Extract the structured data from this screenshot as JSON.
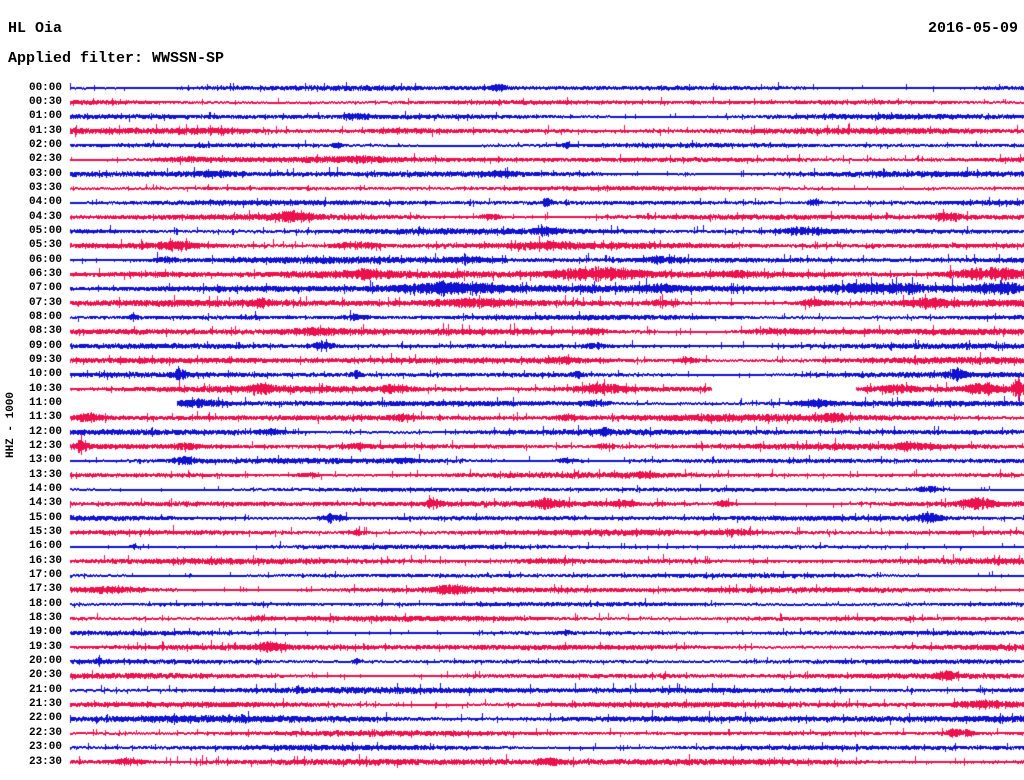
{
  "header": {
    "station": "HL Oia",
    "date": "2016-05-09",
    "filter_label": "Applied filter: WWSSN-SP"
  },
  "axis": {
    "channel_scale_label": "HHZ - 1000"
  },
  "colors": {
    "trace_blue": "#1111d2",
    "trace_red": "#ee0f4d",
    "text": "#000000",
    "background": "#ffffff"
  },
  "chart_data": {
    "type": "helicorder-seismogram",
    "title": "HL Oia",
    "date": "2016-05-09",
    "filter": "WWSSN-SP",
    "ylabel": "HHZ - 1000",
    "minutes_per_row": 30,
    "n_rows": 48,
    "row_color_cycle": [
      "blue",
      "red"
    ],
    "rows": [
      {
        "t": "00:00",
        "c": "blue",
        "b": 1.8,
        "ev": [
          [
            0.45,
            0.006,
            3
          ]
        ]
      },
      {
        "t": "00:30",
        "c": "red",
        "b": 1.6,
        "ev": []
      },
      {
        "t": "01:00",
        "c": "blue",
        "b": 1.8,
        "ev": [
          [
            0.3,
            0.008,
            2.5
          ]
        ]
      },
      {
        "t": "01:30",
        "c": "red",
        "b": 2.0,
        "ev": [
          [
            0.15,
            0.03,
            2
          ],
          [
            0.35,
            0.02,
            2
          ]
        ]
      },
      {
        "t": "02:00",
        "c": "blue",
        "b": 1.5,
        "ev": [
          [
            0.28,
            0.004,
            2.5
          ],
          [
            0.52,
            0.004,
            2.5
          ]
        ]
      },
      {
        "t": "02:30",
        "c": "red",
        "b": 2.0,
        "ev": [
          [
            0.12,
            0.02,
            2
          ],
          [
            0.3,
            0.02,
            2
          ]
        ]
      },
      {
        "t": "03:00",
        "c": "blue",
        "b": 2.0,
        "ev": [
          [
            0.15,
            0.02,
            2
          ],
          [
            0.45,
            0.015,
            2
          ]
        ]
      },
      {
        "t": "03:30",
        "c": "red",
        "b": 1.5,
        "ev": []
      },
      {
        "t": "04:00",
        "c": "blue",
        "b": 1.8,
        "ev": [
          [
            0.5,
            0.004,
            4.5
          ],
          [
            0.78,
            0.004,
            4.5
          ]
        ]
      },
      {
        "t": "04:30",
        "c": "red",
        "b": 2.0,
        "ev": [
          [
            0.235,
            0.012,
            5.5
          ],
          [
            0.44,
            0.008,
            3
          ],
          [
            0.92,
            0.012,
            3.5
          ]
        ]
      },
      {
        "t": "05:00",
        "c": "blue",
        "b": 2.0,
        "ev": [
          [
            0.5,
            0.01,
            2.5
          ],
          [
            0.77,
            0.02,
            3.5
          ]
        ]
      },
      {
        "t": "05:30",
        "c": "red",
        "b": 2.2,
        "ev": [
          [
            0.11,
            0.02,
            3
          ],
          [
            0.3,
            0.02,
            3.5
          ],
          [
            0.5,
            0.015,
            2.5
          ]
        ]
      },
      {
        "t": "06:00",
        "c": "blue",
        "b": 2.2,
        "ev": [
          [
            0.1,
            0.008,
            2.5
          ],
          [
            0.42,
            0.015,
            2.5
          ],
          [
            0.62,
            0.015,
            3
          ]
        ]
      },
      {
        "t": "06:30",
        "c": "red",
        "b": 2.6,
        "ev": [
          [
            0.08,
            0.04,
            2
          ],
          [
            0.31,
            0.015,
            3.5
          ],
          [
            0.555,
            0.035,
            6.5
          ],
          [
            0.7,
            0.01,
            3
          ],
          [
            0.965,
            0.03,
            6.5
          ]
        ]
      },
      {
        "t": "07:00",
        "c": "blue",
        "b": 2.6,
        "ev": [
          [
            0.4,
            0.04,
            5.5
          ],
          [
            0.62,
            0.01,
            3
          ],
          [
            0.845,
            0.05,
            5.5
          ],
          [
            0.975,
            0.02,
            5
          ]
        ]
      },
      {
        "t": "07:30",
        "c": "red",
        "b": 2.4,
        "ev": [
          [
            0.2,
            0.008,
            3
          ],
          [
            0.42,
            0.03,
            3.5
          ],
          [
            0.62,
            0.008,
            3
          ],
          [
            0.78,
            0.012,
            3
          ],
          [
            0.9,
            0.012,
            3.5
          ]
        ]
      },
      {
        "t": "08:00",
        "c": "blue",
        "b": 1.8,
        "ev": [
          [
            0.066,
            0.003,
            5
          ],
          [
            0.3,
            0.008,
            2.5
          ]
        ]
      },
      {
        "t": "08:30",
        "c": "red",
        "b": 2.2,
        "ev": [
          [
            0.26,
            0.025,
            3
          ],
          [
            0.55,
            0.008,
            3
          ],
          [
            0.74,
            0.025,
            3
          ]
        ]
      },
      {
        "t": "09:00",
        "c": "blue",
        "b": 1.8,
        "ev": [
          [
            0.265,
            0.008,
            4.5
          ],
          [
            0.55,
            0.008,
            2.5
          ]
        ]
      },
      {
        "t": "09:30",
        "c": "red",
        "b": 2.2,
        "ev": [
          [
            0.52,
            0.012,
            2.5
          ],
          [
            0.65,
            0.008,
            2.5
          ]
        ]
      },
      {
        "t": "10:00",
        "c": "blue",
        "b": 1.8,
        "ev": [
          [
            0.115,
            0.005,
            4.5
          ],
          [
            0.3,
            0.004,
            3.5
          ],
          [
            0.53,
            0.004,
            3
          ],
          [
            0.93,
            0.005,
            5
          ]
        ]
      },
      {
        "t": "10:30",
        "c": "red",
        "b": 2.2,
        "gaps": [
          [
            0.672,
            0.823
          ]
        ],
        "ev": [
          [
            0.2,
            0.01,
            4
          ],
          [
            0.34,
            0.01,
            4
          ],
          [
            0.555,
            0.02,
            5
          ],
          [
            0.865,
            0.015,
            4
          ],
          [
            0.955,
            0.012,
            5
          ],
          [
            0.993,
            0.004,
            10
          ]
        ]
      },
      {
        "t": "11:00",
        "c": "blue",
        "b": 2.0,
        "start": 0.112,
        "ev": [
          [
            0.135,
            0.015,
            3.5
          ],
          [
            0.55,
            0.01,
            3
          ],
          [
            0.78,
            0.015,
            3
          ]
        ]
      },
      {
        "t": "11:30",
        "c": "red",
        "b": 2.4,
        "ev": [
          [
            0.02,
            0.008,
            3
          ],
          [
            0.35,
            0.008,
            3
          ],
          [
            0.52,
            0.008,
            3
          ],
          [
            0.8,
            0.008,
            3.5
          ]
        ]
      },
      {
        "t": "12:00",
        "c": "blue",
        "b": 2.0,
        "ev": [
          [
            0.21,
            0.01,
            2.5
          ],
          [
            0.56,
            0.004,
            3.5
          ]
        ]
      },
      {
        "t": "12:30",
        "c": "red",
        "b": 2.0,
        "ev": [
          [
            0.012,
            0.004,
            6
          ],
          [
            0.12,
            0.008,
            3
          ],
          [
            0.3,
            0.008,
            3
          ],
          [
            0.56,
            0.008,
            3
          ],
          [
            0.88,
            0.01,
            3
          ]
        ]
      },
      {
        "t": "13:00",
        "c": "blue",
        "b": 1.8,
        "ev": [
          [
            0.12,
            0.008,
            4.5
          ],
          [
            0.35,
            0.008,
            2.5
          ],
          [
            0.52,
            0.008,
            2.5
          ]
        ]
      },
      {
        "t": "13:30",
        "c": "red",
        "b": 1.8,
        "ev": [
          [
            0.25,
            0.01,
            2
          ],
          [
            0.6,
            0.01,
            2
          ]
        ]
      },
      {
        "t": "14:00",
        "c": "blue",
        "b": 1.5,
        "ev": [
          [
            0.9,
            0.01,
            3.5
          ]
        ]
      },
      {
        "t": "14:30",
        "c": "red",
        "b": 2.0,
        "ev": [
          [
            0.38,
            0.006,
            4
          ],
          [
            0.5,
            0.012,
            4
          ],
          [
            0.58,
            0.006,
            3.5
          ],
          [
            0.685,
            0.006,
            3.5
          ],
          [
            0.95,
            0.012,
            5.5
          ]
        ]
      },
      {
        "t": "15:00",
        "c": "blue",
        "b": 1.8,
        "ev": [
          [
            0.275,
            0.008,
            4.5
          ],
          [
            0.9,
            0.008,
            5
          ]
        ]
      },
      {
        "t": "15:30",
        "c": "red",
        "b": 2.0,
        "ev": [
          [
            0.3,
            0.01,
            2
          ],
          [
            0.7,
            0.01,
            2
          ]
        ]
      },
      {
        "t": "16:00",
        "c": "blue",
        "b": 1.5,
        "ev": [
          [
            0.066,
            0.003,
            3
          ]
        ]
      },
      {
        "t": "16:30",
        "c": "red",
        "b": 2.0,
        "ev": [
          [
            0.5,
            0.02,
            1.5
          ]
        ]
      },
      {
        "t": "17:00",
        "c": "blue",
        "b": 1.5,
        "ev": []
      },
      {
        "t": "17:30",
        "c": "red",
        "b": 2.0,
        "ev": [
          [
            0.05,
            0.02,
            2.5
          ],
          [
            0.4,
            0.015,
            4
          ]
        ]
      },
      {
        "t": "18:00",
        "c": "blue",
        "b": 1.5,
        "ev": []
      },
      {
        "t": "18:30",
        "c": "red",
        "b": 1.8,
        "ev": [
          [
            0.2,
            0.01,
            1.5
          ]
        ]
      },
      {
        "t": "19:00",
        "c": "blue",
        "b": 1.5,
        "ev": [
          [
            0.52,
            0.003,
            3
          ]
        ]
      },
      {
        "t": "19:30",
        "c": "red",
        "b": 2.0,
        "ev": [
          [
            0.21,
            0.01,
            4.5
          ]
        ]
      },
      {
        "t": "20:00",
        "c": "blue",
        "b": 1.5,
        "ev": [
          [
            0.03,
            0.003,
            3
          ],
          [
            0.3,
            0.003,
            3
          ]
        ]
      },
      {
        "t": "20:30",
        "c": "red",
        "b": 1.8,
        "ev": [
          [
            0.92,
            0.008,
            3.5
          ]
        ]
      },
      {
        "t": "21:00",
        "c": "blue",
        "b": 2.2,
        "ev": []
      },
      {
        "t": "21:30",
        "c": "red",
        "b": 2.0,
        "ev": [
          [
            0.96,
            0.02,
            3.5
          ]
        ]
      },
      {
        "t": "22:00",
        "c": "blue",
        "b": 2.4,
        "ev": []
      },
      {
        "t": "22:30",
        "c": "red",
        "b": 1.8,
        "ev": [
          [
            0.93,
            0.01,
            4.5
          ]
        ]
      },
      {
        "t": "23:00",
        "c": "blue",
        "b": 1.8,
        "ev": []
      },
      {
        "t": "23:30",
        "c": "red",
        "b": 2.4,
        "ev": [
          [
            0.06,
            0.015,
            3
          ],
          [
            0.5,
            0.008,
            3
          ]
        ]
      }
    ]
  }
}
